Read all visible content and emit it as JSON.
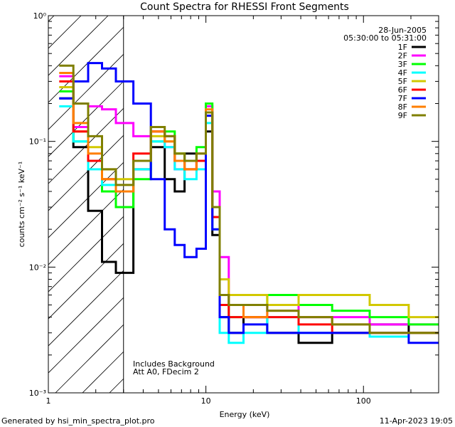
{
  "chart_data": {
    "type": "line",
    "title": "Count Spectra for RHESSI Front Segments",
    "xlabel": "Energy (keV)",
    "ylabel": "counts cm⁻² s⁻¹ keV⁻¹",
    "xscale": "log",
    "yscale": "log",
    "xlim": [
      1.0,
      300.0
    ],
    "ylim": [
      0.001,
      1.0
    ],
    "x_tick_labels": [
      "1",
      "10",
      "100"
    ],
    "y_tick_labels": [
      "10⁻³",
      "10⁻²",
      "10⁻¹",
      "10⁰"
    ],
    "date": "28-Jun-2005",
    "time_range": "05:30:00 to 05:31:00",
    "shaded_region_max_energy": 3.0,
    "annotations": [
      "Includes Background",
      "Att A0, FDecim 2"
    ],
    "footer_left": "Generated by hsi_min_spectra_plot.pro",
    "footer_right": "11-Apr-2023 19:05",
    "energy_bins_kev": [
      1.3,
      1.6,
      2.0,
      2.4,
      3.0,
      4.0,
      5.0,
      6.0,
      6.7,
      8.0,
      9.5,
      10.5,
      11.5,
      13.0,
      15.0,
      20.0,
      30.0,
      50.0,
      80.0,
      150.0,
      250.0
    ],
    "series": [
      {
        "name": "1F",
        "color": "#000000",
        "values": [
          0.22,
          0.09,
          0.028,
          0.011,
          0.009,
          0.06,
          0.09,
          0.05,
          0.04,
          0.08,
          0.07,
          0.12,
          0.018,
          0.004,
          0.003,
          0.004,
          0.003,
          0.0025,
          0.003,
          0.0035,
          0.003
        ]
      },
      {
        "name": "2F",
        "color": "#ff00ff",
        "values": [
          0.33,
          0.13,
          0.19,
          0.18,
          0.14,
          0.11,
          0.12,
          0.09,
          0.06,
          0.06,
          0.07,
          0.19,
          0.04,
          0.012,
          0.005,
          0.004,
          0.005,
          0.004,
          0.004,
          0.0035,
          0.0035
        ]
      },
      {
        "name": "3F",
        "color": "#00ff00",
        "values": [
          0.25,
          0.1,
          0.07,
          0.04,
          0.03,
          0.05,
          0.1,
          0.12,
          0.08,
          0.07,
          0.09,
          0.2,
          0.03,
          0.006,
          0.004,
          0.005,
          0.006,
          0.005,
          0.0045,
          0.004,
          0.0035
        ]
      },
      {
        "name": "4F",
        "color": "#00ffff",
        "values": [
          0.19,
          0.1,
          0.06,
          0.045,
          0.04,
          0.06,
          0.1,
          0.09,
          0.06,
          0.05,
          0.06,
          0.14,
          0.02,
          0.003,
          0.0025,
          0.003,
          0.004,
          0.003,
          0.003,
          0.0028,
          0.003
        ]
      },
      {
        "name": "5F",
        "color": "#d2c800",
        "values": [
          0.27,
          0.12,
          0.09,
          0.06,
          0.05,
          0.07,
          0.11,
          0.1,
          0.08,
          0.06,
          0.07,
          0.16,
          0.03,
          0.008,
          0.006,
          0.006,
          0.005,
          0.006,
          0.006,
          0.005,
          0.004
        ]
      },
      {
        "name": "6F",
        "color": "#ff0000",
        "values": [
          0.3,
          0.12,
          0.07,
          0.05,
          0.04,
          0.08,
          0.12,
          0.11,
          0.07,
          0.06,
          0.07,
          0.17,
          0.025,
          0.005,
          0.004,
          0.004,
          0.004,
          0.0035,
          0.003,
          0.003,
          0.003
        ]
      },
      {
        "name": "7F",
        "color": "#0000ff",
        "values": [
          0.22,
          0.3,
          0.42,
          0.38,
          0.3,
          0.2,
          0.05,
          0.02,
          0.015,
          0.012,
          0.014,
          0.16,
          0.02,
          0.004,
          0.003,
          0.0035,
          0.003,
          0.003,
          0.003,
          0.003,
          0.0025
        ]
      },
      {
        "name": "8F",
        "color": "#ff7f00",
        "values": [
          0.35,
          0.14,
          0.08,
          0.05,
          0.04,
          0.07,
          0.12,
          0.1,
          0.07,
          0.06,
          0.08,
          0.18,
          0.03,
          0.006,
          0.005,
          0.004,
          0.0045,
          0.004,
          0.0035,
          0.003,
          0.003
        ]
      },
      {
        "name": "9F",
        "color": "#7f7f00",
        "values": [
          0.4,
          0.2,
          0.11,
          0.06,
          0.045,
          0.07,
          0.13,
          0.11,
          0.08,
          0.07,
          0.08,
          0.17,
          0.03,
          0.006,
          0.005,
          0.005,
          0.0045,
          0.004,
          0.0035,
          0.003,
          0.003
        ]
      }
    ]
  }
}
